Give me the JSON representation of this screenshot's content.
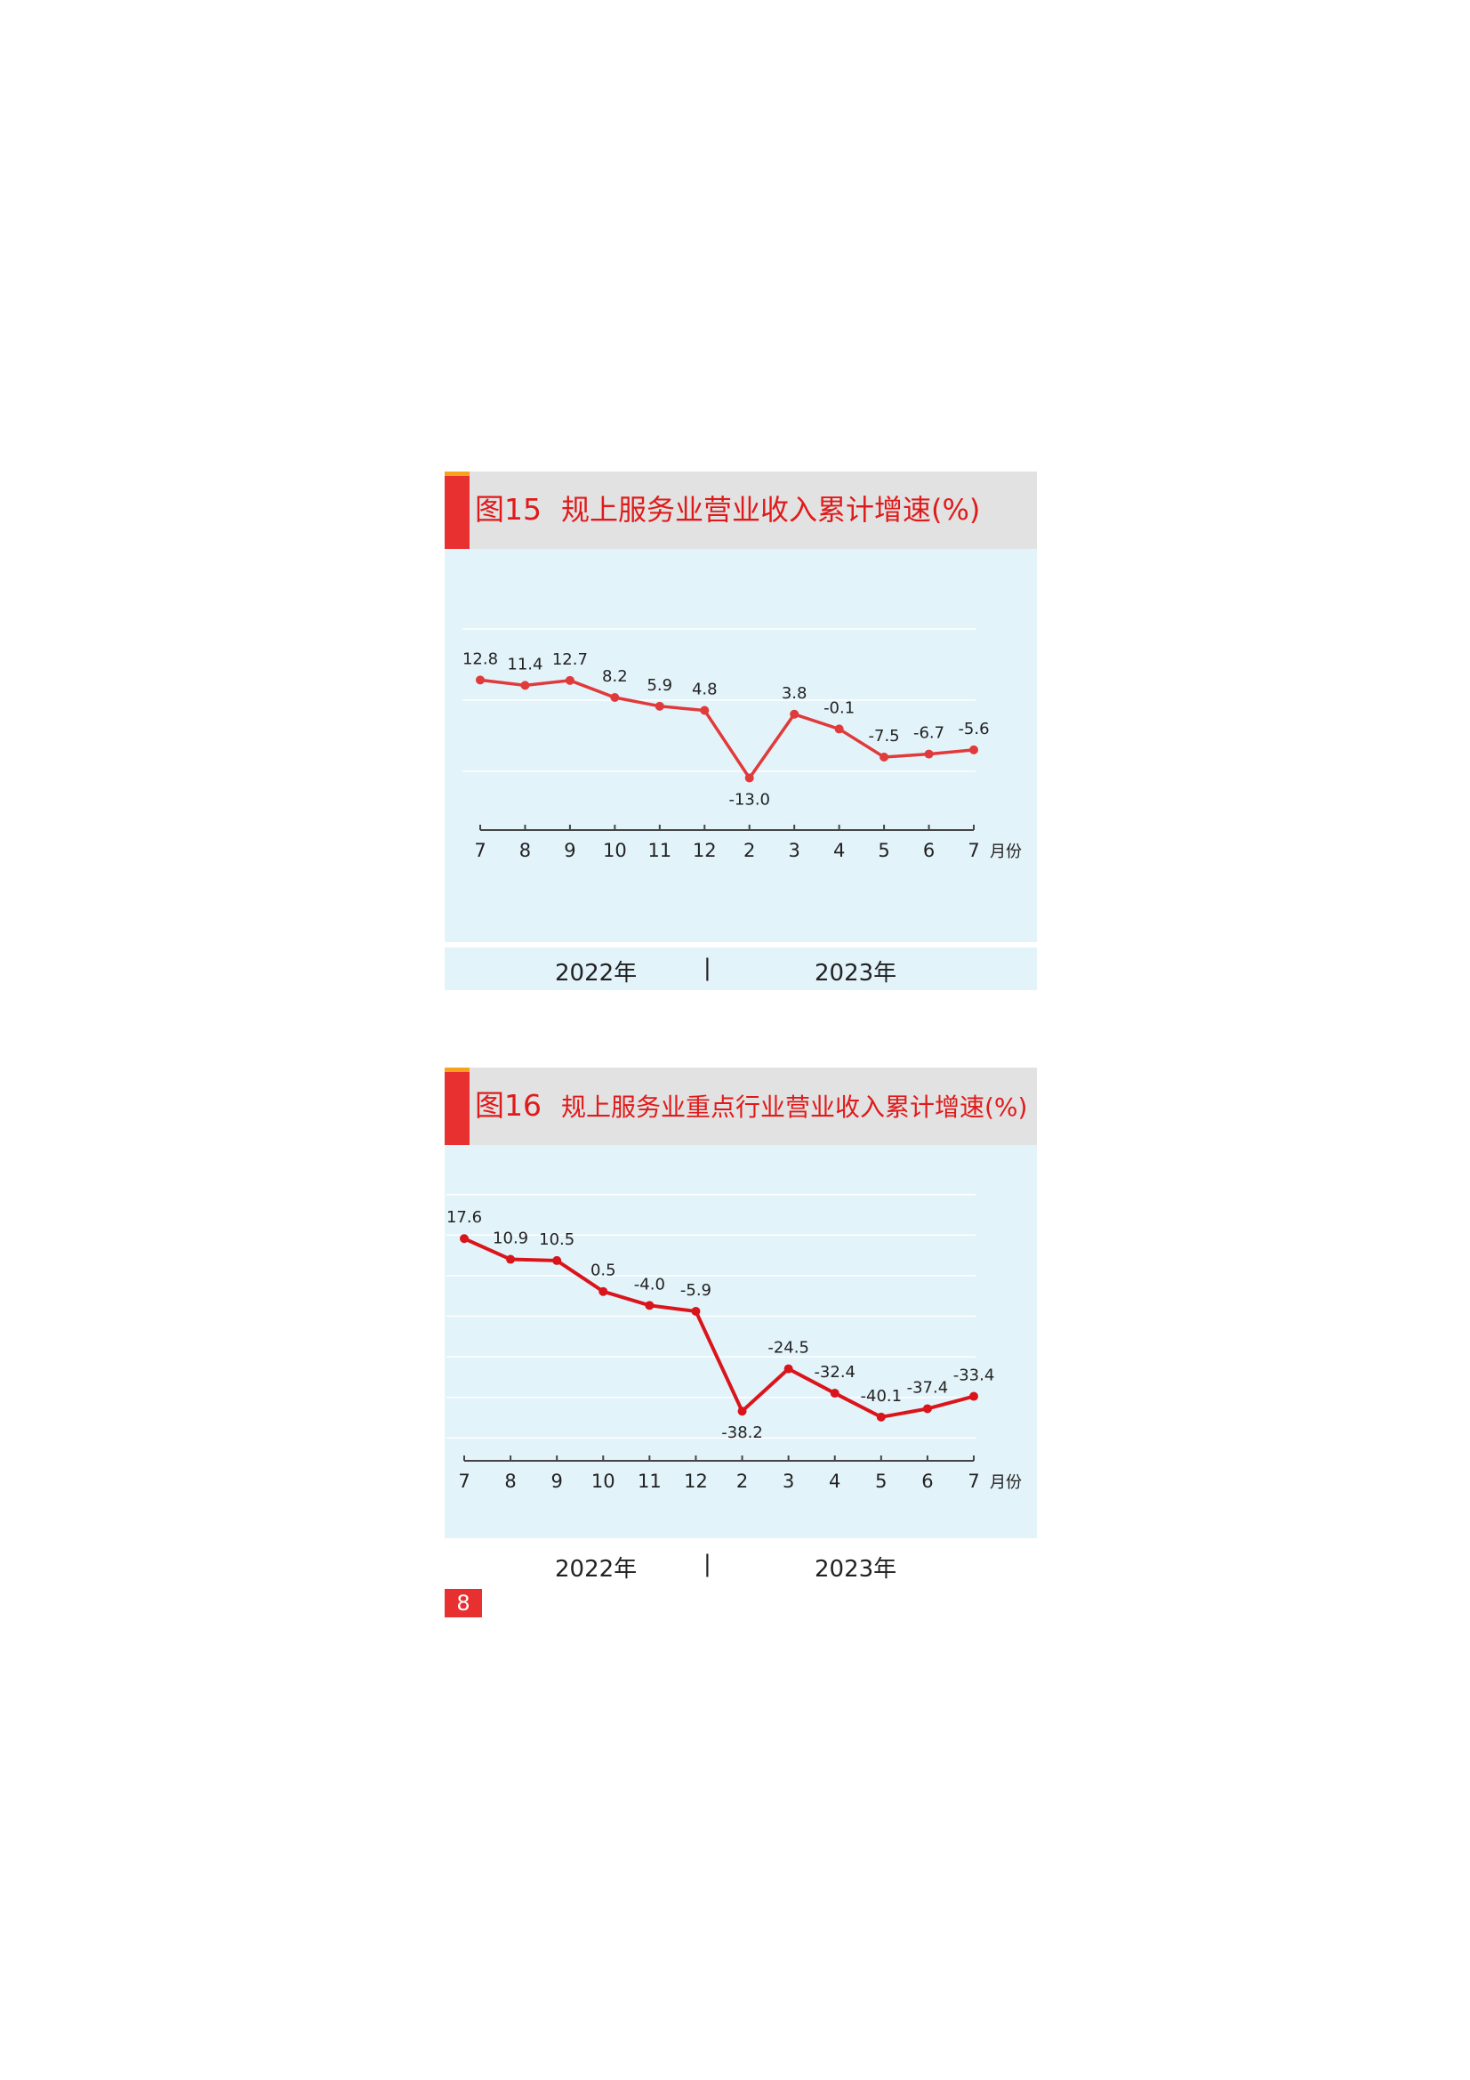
{
  "chart_data": [
    {
      "type": "line",
      "figure_number": "图15",
      "title": "规上服务业营业收入累计增速(%)",
      "categories": [
        "7",
        "8",
        "9",
        "10",
        "11",
        "12",
        "2",
        "3",
        "4",
        "5",
        "6",
        "7"
      ],
      "values": [
        12.8,
        11.4,
        12.7,
        8.2,
        5.9,
        4.8,
        -13.0,
        3.8,
        -0.1,
        -7.5,
        -6.7,
        -5.6
      ],
      "data_labels": [
        "12.8",
        "11.4",
        "12.7",
        "8.2",
        "5.9",
        "4.8",
        "-13.0",
        "3.8",
        "-0.1",
        "-7.5",
        "-6.7",
        "-5.6"
      ],
      "x_unit": "月份",
      "year_labels": [
        "2022年",
        "2023年"
      ],
      "year_separator": "|",
      "ylim": [
        -30,
        45
      ],
      "grid": true,
      "line_color": "#e03a3a"
    },
    {
      "type": "line",
      "figure_number": "图16",
      "title": "规上服务业重点行业营业收入累计增速(%)",
      "categories": [
        "7",
        "8",
        "9",
        "10",
        "11",
        "12",
        "2",
        "3",
        "4",
        "5",
        "6",
        "7"
      ],
      "values": [
        17.6,
        10.9,
        10.5,
        0.5,
        -4.0,
        -5.9,
        -38.2,
        -24.5,
        -32.4,
        -40.1,
        -37.4,
        -33.4
      ],
      "data_labels": [
        "17.6",
        "10.9",
        "10.5",
        "0.5",
        "-4.0",
        "-5.9",
        "-38.2",
        "-24.5",
        "-32.4",
        "-40.1",
        "-37.4",
        "-33.4"
      ],
      "x_unit": "月份",
      "year_labels": [
        "2022年",
        "2023年"
      ],
      "year_separator": "|",
      "ylim": [
        -60,
        45
      ],
      "grid": true,
      "line_color": "#d9151b"
    }
  ],
  "page_number": "8"
}
